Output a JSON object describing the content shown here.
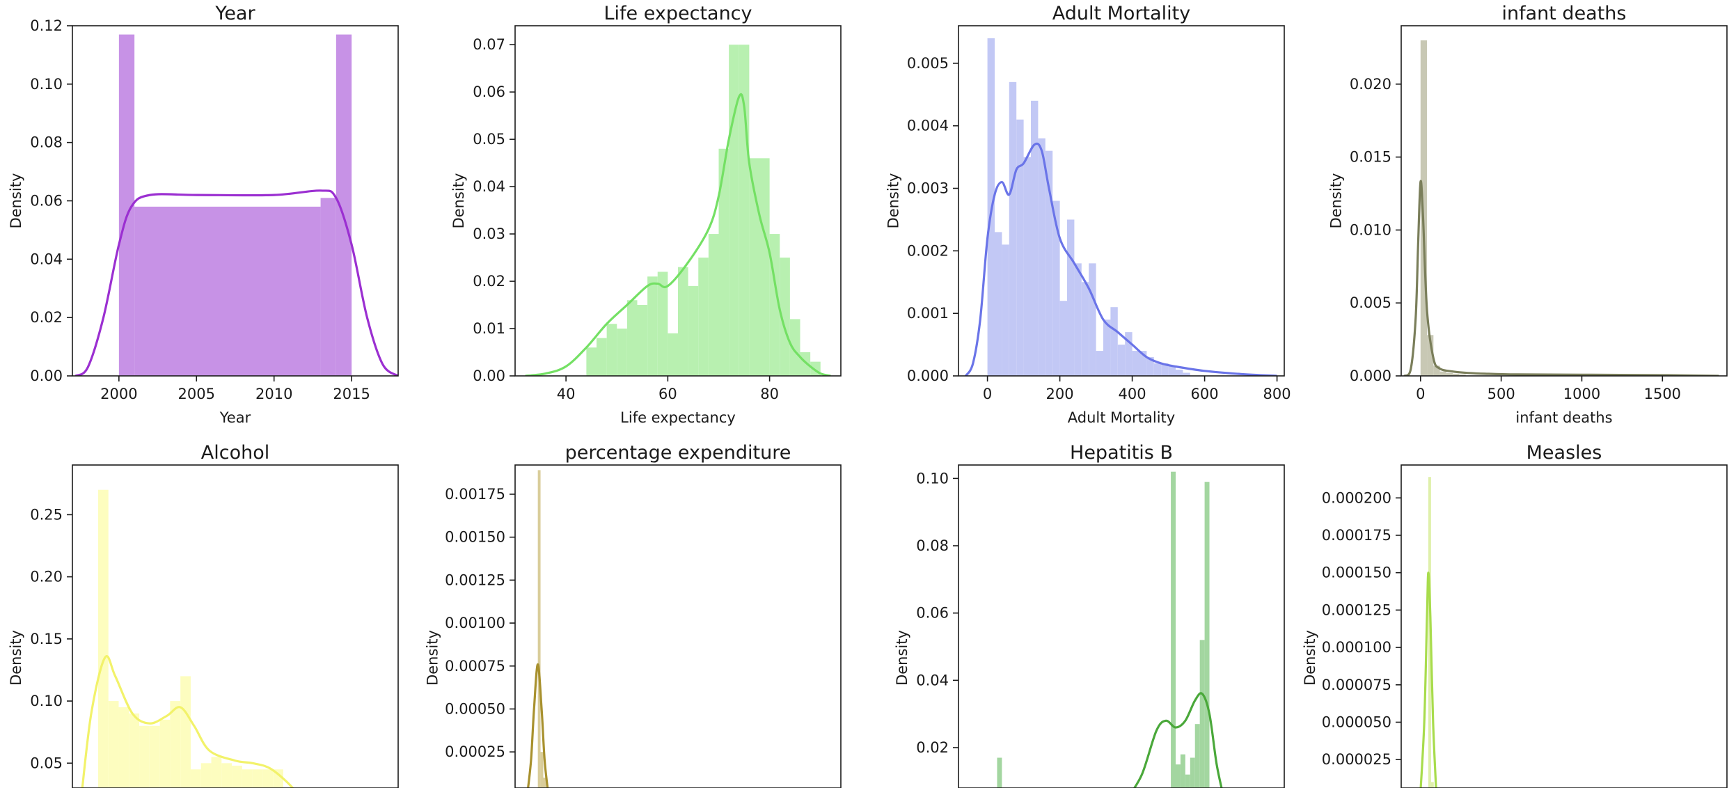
{
  "figure": {
    "background": "#ffffff"
  },
  "chart_data": [
    {
      "type": "histogram",
      "title": "Year",
      "xlabel": "Year",
      "ylabel": "Density",
      "xlim": [
        1997,
        2018
      ],
      "ylim": [
        0,
        0.12
      ],
      "xticks": [
        2000,
        2005,
        2010,
        2015
      ],
      "yticks": [
        0,
        0.02,
        0.04,
        0.06,
        0.08,
        0.1,
        0.12
      ],
      "ytick_labels": [
        "0.00",
        "0.02",
        "0.04",
        "0.06",
        "0.08",
        "0.10",
        "0.12"
      ],
      "bar_color": "#c792e6",
      "kde_color": "#9b2fd1",
      "bins": [
        [
          2000,
          2001,
          0.117
        ],
        [
          2001,
          2013,
          0.058
        ],
        [
          2013,
          2014,
          0.061
        ],
        [
          2014,
          2015,
          0.117
        ]
      ],
      "kde": [
        [
          1997.2,
          0
        ],
        [
          1998,
          0.003
        ],
        [
          1999,
          0.02
        ],
        [
          2000,
          0.045
        ],
        [
          2000.8,
          0.058
        ],
        [
          2002,
          0.062
        ],
        [
          2005,
          0.062
        ],
        [
          2010,
          0.062
        ],
        [
          2013,
          0.0635
        ],
        [
          2014,
          0.061
        ],
        [
          2015,
          0.045
        ],
        [
          2016,
          0.02
        ],
        [
          2017,
          0.004
        ],
        [
          2018,
          0
        ]
      ]
    },
    {
      "type": "histogram",
      "title": "Life expectancy",
      "xlabel": "Life expectancy",
      "ylabel": "Density",
      "xlim": [
        30,
        94
      ],
      "ylim": [
        0,
        0.074
      ],
      "xticks": [
        40,
        60,
        80
      ],
      "yticks": [
        0,
        0.01,
        0.02,
        0.03,
        0.04,
        0.05,
        0.06,
        0.07
      ],
      "ytick_labels": [
        "0.00",
        "0.01",
        "0.02",
        "0.03",
        "0.04",
        "0.05",
        "0.06",
        "0.07"
      ],
      "bar_color": "#b8f0b0",
      "kde_color": "#74e064",
      "bins": [
        [
          44,
          46,
          0.006
        ],
        [
          46,
          48,
          0.008
        ],
        [
          48,
          50,
          0.011
        ],
        [
          50,
          52,
          0.01
        ],
        [
          52,
          54,
          0.016
        ],
        [
          54,
          56,
          0.015
        ],
        [
          56,
          58,
          0.021
        ],
        [
          58,
          60,
          0.022
        ],
        [
          60,
          62,
          0.009
        ],
        [
          62,
          64,
          0.023
        ],
        [
          64,
          66,
          0.019
        ],
        [
          66,
          68,
          0.025
        ],
        [
          68,
          70,
          0.03
        ],
        [
          70,
          72,
          0.048
        ],
        [
          72,
          74,
          0.07
        ],
        [
          74,
          76,
          0.07
        ],
        [
          76,
          78,
          0.046
        ],
        [
          78,
          80,
          0.046
        ],
        [
          80,
          82,
          0.03
        ],
        [
          82,
          84,
          0.025
        ],
        [
          84,
          86,
          0.012
        ],
        [
          86,
          88,
          0.005
        ],
        [
          88,
          90,
          0.003
        ]
      ],
      "kde": [
        [
          32,
          0
        ],
        [
          36,
          0.0005
        ],
        [
          40,
          0.002
        ],
        [
          44,
          0.006
        ],
        [
          48,
          0.011
        ],
        [
          52,
          0.015
        ],
        [
          56,
          0.019
        ],
        [
          58,
          0.0195
        ],
        [
          60,
          0.019
        ],
        [
          64,
          0.024
        ],
        [
          68,
          0.031
        ],
        [
          70,
          0.038
        ],
        [
          72,
          0.05
        ],
        [
          74,
          0.059
        ],
        [
          75,
          0.057
        ],
        [
          76,
          0.045
        ],
        [
          78,
          0.034
        ],
        [
          80,
          0.026
        ],
        [
          82,
          0.014
        ],
        [
          84,
          0.007
        ],
        [
          86,
          0.004
        ],
        [
          88,
          0.002
        ],
        [
          90,
          0.0005
        ],
        [
          92,
          0
        ]
      ]
    },
    {
      "type": "histogram",
      "title": "Adult Mortality",
      "xlabel": "Adult Mortality",
      "ylabel": "Density",
      "xlim": [
        -80,
        820
      ],
      "ylim": [
        0,
        0.0056
      ],
      "xticks": [
        0,
        200,
        400,
        600,
        800
      ],
      "yticks": [
        0,
        0.001,
        0.002,
        0.003,
        0.004,
        0.005
      ],
      "ytick_labels": [
        "0.000",
        "0.001",
        "0.002",
        "0.003",
        "0.004",
        "0.005"
      ],
      "bar_color": "#c2c8f5",
      "kde_color": "#6a74e8",
      "bins": [
        [
          0,
          20,
          0.0054
        ],
        [
          20,
          40,
          0.0023
        ],
        [
          40,
          60,
          0.0021
        ],
        [
          60,
          80,
          0.0047
        ],
        [
          80,
          100,
          0.0041
        ],
        [
          100,
          120,
          0.0035
        ],
        [
          120,
          140,
          0.0044
        ],
        [
          140,
          160,
          0.0038
        ],
        [
          160,
          180,
          0.0036
        ],
        [
          180,
          200,
          0.0028
        ],
        [
          200,
          220,
          0.0012
        ],
        [
          220,
          240,
          0.0025
        ],
        [
          240,
          260,
          0.0018
        ],
        [
          260,
          280,
          0.0015
        ],
        [
          280,
          300,
          0.0018
        ],
        [
          300,
          320,
          0.0004
        ],
        [
          320,
          340,
          0.0009
        ],
        [
          340,
          360,
          0.0011
        ],
        [
          360,
          380,
          0.0005
        ],
        [
          380,
          400,
          0.0007
        ],
        [
          400,
          420,
          0.0004
        ],
        [
          420,
          440,
          0.0004
        ],
        [
          440,
          460,
          0.0003
        ],
        [
          460,
          480,
          0.0002
        ],
        [
          480,
          500,
          0.0002
        ],
        [
          500,
          520,
          0.00015
        ],
        [
          520,
          540,
          0.0001
        ],
        [
          540,
          560,
          5e-05
        ]
      ],
      "kde": [
        [
          -60,
          0
        ],
        [
          -40,
          0.0002
        ],
        [
          -20,
          0.0009
        ],
        [
          0,
          0.0022
        ],
        [
          20,
          0.0029
        ],
        [
          40,
          0.0031
        ],
        [
          60,
          0.0029
        ],
        [
          80,
          0.0033
        ],
        [
          100,
          0.0034
        ],
        [
          130,
          0.0037
        ],
        [
          150,
          0.0036
        ],
        [
          170,
          0.003
        ],
        [
          200,
          0.0022
        ],
        [
          240,
          0.0018
        ],
        [
          280,
          0.0014
        ],
        [
          320,
          0.0009
        ],
        [
          360,
          0.0007
        ],
        [
          400,
          0.0005
        ],
        [
          440,
          0.0003
        ],
        [
          480,
          0.0002
        ],
        [
          520,
          0.00015
        ],
        [
          600,
          8e-05
        ],
        [
          700,
          3e-05
        ],
        [
          800,
          0
        ]
      ]
    },
    {
      "type": "histogram",
      "title": "infant deaths",
      "xlabel": "infant deaths",
      "ylabel": "Density",
      "xlim": [
        -120,
        1900
      ],
      "ylim": [
        0,
        0.024
      ],
      "xticks": [
        0,
        500,
        1000,
        1500
      ],
      "yticks": [
        0,
        0.005,
        0.01,
        0.015,
        0.02
      ],
      "ytick_labels": [
        "0.000",
        "0.005",
        "0.010",
        "0.015",
        "0.020"
      ],
      "bar_color": "#c8c8b4",
      "kde_color": "#7a7e5a",
      "bins": [
        [
          0,
          40,
          0.023
        ],
        [
          40,
          80,
          0.0028
        ],
        [
          80,
          120,
          0.0007
        ],
        [
          120,
          160,
          0.0003
        ],
        [
          160,
          200,
          0.0002
        ],
        [
          200,
          240,
          0.00015
        ],
        [
          240,
          280,
          0.0001
        ]
      ],
      "kde": [
        [
          -100,
          0
        ],
        [
          -60,
          0.0005
        ],
        [
          -30,
          0.004
        ],
        [
          -15,
          0.009
        ],
        [
          0,
          0.0133
        ],
        [
          15,
          0.011
        ],
        [
          40,
          0.0045
        ],
        [
          80,
          0.0012
        ],
        [
          120,
          0.0005
        ],
        [
          200,
          0.0003
        ],
        [
          300,
          0.0002
        ],
        [
          400,
          0.00015
        ],
        [
          600,
          0.0001
        ],
        [
          1000,
          8e-05
        ],
        [
          1500,
          5e-05
        ],
        [
          1850,
          0
        ]
      ]
    },
    {
      "type": "histogram",
      "title": "Alcohol",
      "xlabel": "",
      "ylabel": "Density",
      "xlim": [
        -1.5,
        17.5
      ],
      "ylim": [
        0.03,
        0.29
      ],
      "xticks": [],
      "yticks": [
        0.05,
        0.1,
        0.15,
        0.2,
        0.25
      ],
      "ytick_labels": [
        "0.05",
        "0.10",
        "0.15",
        "0.20",
        "0.25"
      ],
      "bar_color": "#fdfdbf",
      "kde_color": "#f2f26a",
      "bins": [
        [
          0,
          0.6,
          0.27
        ],
        [
          0.6,
          1.2,
          0.1
        ],
        [
          1.2,
          1.8,
          0.095
        ],
        [
          1.8,
          2.4,
          0.09
        ],
        [
          2.4,
          3.0,
          0.08
        ],
        [
          3.0,
          3.6,
          0.08
        ],
        [
          3.6,
          4.2,
          0.085
        ],
        [
          4.2,
          4.8,
          0.1
        ],
        [
          4.8,
          5.4,
          0.12
        ],
        [
          5.4,
          6.0,
          0.045
        ],
        [
          6.0,
          6.6,
          0.05
        ],
        [
          6.6,
          7.2,
          0.055
        ],
        [
          7.2,
          7.8,
          0.05
        ],
        [
          7.8,
          8.4,
          0.048
        ],
        [
          8.4,
          9.0,
          0.045
        ],
        [
          9.0,
          9.6,
          0.045
        ],
        [
          9.6,
          10.2,
          0.045
        ],
        [
          10.2,
          10.8,
          0.045
        ]
      ],
      "kde": [
        [
          -1.0,
          0.02
        ],
        [
          -0.4,
          0.09
        ],
        [
          0.4,
          0.135
        ],
        [
          1.0,
          0.12
        ],
        [
          2.0,
          0.09
        ],
        [
          3.0,
          0.082
        ],
        [
          4.0,
          0.088
        ],
        [
          4.8,
          0.095
        ],
        [
          5.6,
          0.08
        ],
        [
          6.5,
          0.06
        ],
        [
          8.0,
          0.052
        ],
        [
          9.0,
          0.05
        ],
        [
          10.0,
          0.046
        ],
        [
          11.0,
          0.035
        ],
        [
          12.0,
          0.02
        ],
        [
          13.0,
          0.005
        ]
      ]
    },
    {
      "type": "histogram",
      "title": "percentage expenditure",
      "xlabel": "",
      "ylabel": "Density",
      "xlim": [
        -1500,
        20000
      ],
      "ylim": [
        4e-05,
        0.00192
      ],
      "xticks": [],
      "yticks": [
        0.00025,
        0.0005,
        0.00075,
        0.001,
        0.00125,
        0.0015,
        0.00175
      ],
      "ytick_labels": [
        "0.00025",
        "0.00050",
        "0.00075",
        "0.00100",
        "0.00125",
        "0.00150",
        "0.00175"
      ],
      "bar_color": "#d9cd9a",
      "kde_color": "#a8912e",
      "bins": [
        [
          0,
          180,
          0.00189
        ],
        [
          180,
          360,
          0.00025
        ],
        [
          360,
          540,
          0.0001
        ]
      ],
      "kde": [
        [
          -700,
          0
        ],
        [
          -450,
          0.0002
        ],
        [
          -250,
          0.0005
        ],
        [
          0,
          0.00076
        ],
        [
          250,
          0.0005
        ],
        [
          450,
          0.0002
        ],
        [
          700,
          0
        ]
      ]
    },
    {
      "type": "histogram",
      "title": "Hepatitis B",
      "xlabel": "",
      "ylabel": "Density",
      "xlim": [
        -10,
        125
      ],
      "ylim": [
        0.008,
        0.104
      ],
      "xticks": [],
      "yticks": [
        0.02,
        0.04,
        0.06,
        0.08,
        0.1
      ],
      "ytick_labels": [
        "0.02",
        "0.04",
        "0.06",
        "0.08",
        "0.10"
      ],
      "bar_color": "#a3d6a0",
      "kde_color": "#4aa83a",
      "bins": [
        [
          6,
          8,
          0.017
        ],
        [
          78,
          80,
          0.102
        ],
        [
          80,
          82,
          0.015
        ],
        [
          82,
          84,
          0.018
        ],
        [
          84,
          86,
          0.012
        ],
        [
          86,
          88,
          0.017
        ],
        [
          88,
          90,
          0.027
        ],
        [
          90,
          92,
          0.052
        ],
        [
          92,
          94,
          0.099
        ]
      ],
      "kde": [
        [
          60,
          0.005
        ],
        [
          66,
          0.012
        ],
        [
          72,
          0.025
        ],
        [
          76,
          0.028
        ],
        [
          80,
          0.026
        ],
        [
          84,
          0.028
        ],
        [
          88,
          0.034
        ],
        [
          91,
          0.036
        ],
        [
          94,
          0.03
        ],
        [
          97,
          0.015
        ],
        [
          100,
          0.005
        ]
      ]
    },
    {
      "type": "histogram",
      "title": "Measles",
      "xlabel": "",
      "ylabel": "Density",
      "xlim": [
        -20000,
        220000
      ],
      "ylim": [
        6e-06,
        0.000222
      ],
      "xticks": [],
      "yticks": [
        2.5e-05,
        5e-05,
        7.5e-05,
        0.0001,
        0.000125,
        0.00015,
        0.000175,
        0.0002
      ],
      "ytick_labels": [
        "0.000025",
        "0.000050",
        "0.000075",
        "0.000100",
        "0.000125",
        "0.000150",
        "0.000175",
        "0.000200"
      ],
      "bar_color": "#dff0ab",
      "kde_color": "#a8dc4c",
      "bins": [
        [
          0,
          2000,
          0.000214
        ],
        [
          2000,
          4000,
          1e-05
        ]
      ],
      "kde": [
        [
          -6000,
          0
        ],
        [
          -3000,
          5e-05
        ],
        [
          -1000,
          0.00012
        ],
        [
          0,
          0.00015
        ],
        [
          1500,
          0.00012
        ],
        [
          3500,
          5e-05
        ],
        [
          6000,
          0
        ]
      ]
    }
  ]
}
